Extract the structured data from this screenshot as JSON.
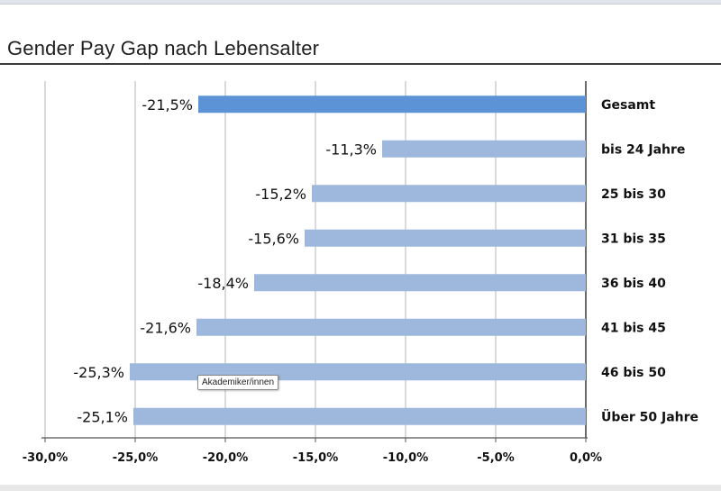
{
  "title": "Gender Pay Gap nach Lebensalter",
  "tooltip": "Akademiker/innen",
  "chart_data": {
    "type": "bar",
    "orientation": "horizontal",
    "title": "Gender Pay Gap nach Lebensalter",
    "categories": [
      "Gesamt",
      "bis 24 Jahre",
      "25 bis 30",
      "31 bis 35",
      "36 bis 40",
      "41 bis 45",
      "46 bis 50",
      "Über 50 Jahre"
    ],
    "values": [
      -21.5,
      -11.3,
      -15.2,
      -15.6,
      -18.4,
      -21.6,
      -25.3,
      -25.1
    ],
    "value_labels": [
      "-21,5%",
      "-11,3%",
      "-15,2%",
      "-15,6%",
      "-18,4%",
      "-21,6%",
      "-25,3%",
      "-25,1%"
    ],
    "xlim": [
      -30,
      0
    ],
    "xticks": [
      -30,
      -25,
      -20,
      -15,
      -10,
      -5,
      0
    ],
    "xtick_labels": [
      "-30,0%",
      "-25,0%",
      "-20,0%",
      "-15,0%",
      "-10,0%",
      "-5,0%",
      "0,0%"
    ],
    "xlabel": "",
    "ylabel": "",
    "grid": true,
    "colors": {
      "highlight": "#5b93d6",
      "bar": "#9db8dc"
    }
  }
}
